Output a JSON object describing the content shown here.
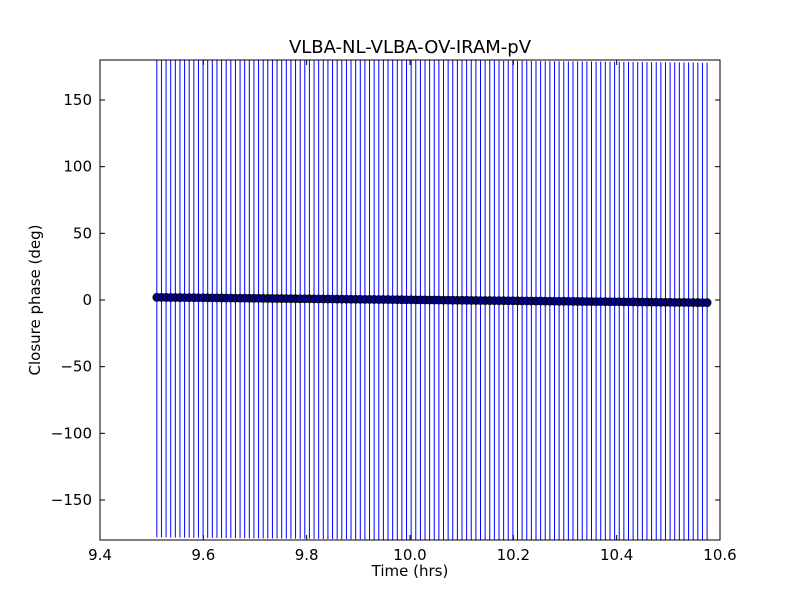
{
  "chart_data": {
    "type": "scatter",
    "title": "VLBA-NL-VLBA-OV-IRAM-pV",
    "xlabel": "Time (hrs)",
    "ylabel": "Closure phase (deg)",
    "xlim": [
      9.4,
      10.6
    ],
    "ylim": [
      -180,
      180
    ],
    "xticks": [
      9.4,
      9.6,
      9.8,
      10.0,
      10.2,
      10.4,
      10.6
    ],
    "xtick_labels": [
      "9.4",
      "9.6",
      "9.8",
      "10.0",
      "10.2",
      "10.4",
      "10.6"
    ],
    "yticks": [
      -150,
      -100,
      -50,
      0,
      50,
      100,
      150
    ],
    "ytick_labels": [
      "−150",
      "−100",
      "−50",
      "0",
      "50",
      "100",
      "150"
    ],
    "grid": false,
    "error_bars": true,
    "x_start": 9.51,
    "x_end": 10.575,
    "n_points": 120,
    "y_start": 2.0,
    "y_end": -2.0,
    "error_halfwidth": 180,
    "marker_color": "#000080",
    "errorbar_color": "#0000ff"
  }
}
